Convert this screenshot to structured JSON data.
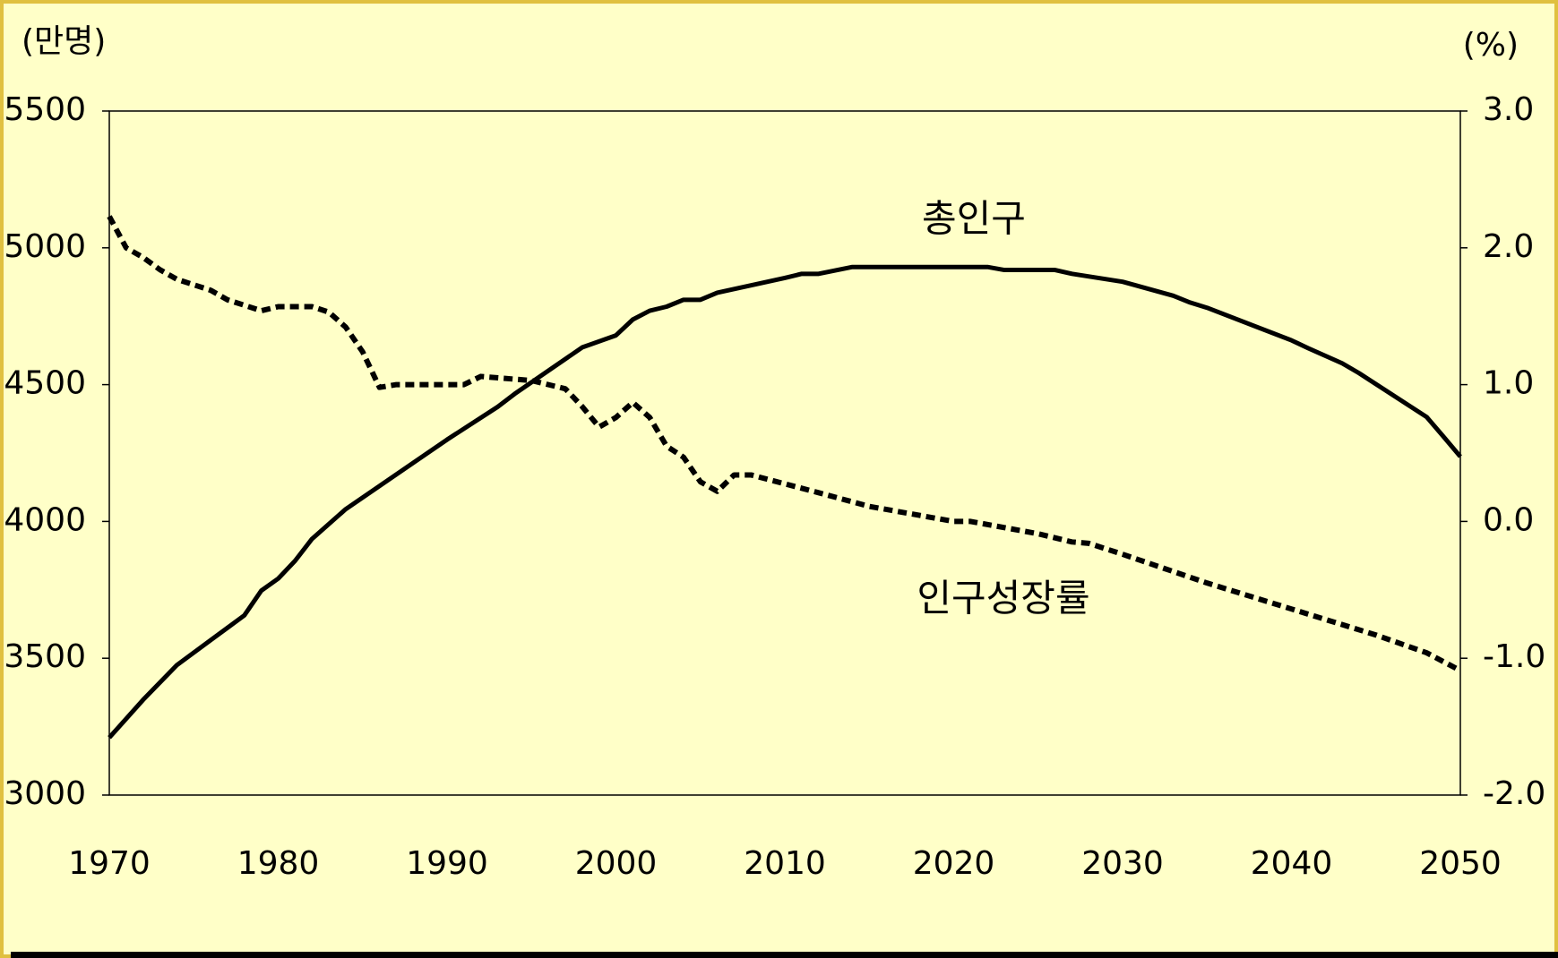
{
  "chart_data": {
    "type": "line",
    "y_unit": "(만명)",
    "y2_unit": "(%)",
    "xlim": [
      1970,
      2050
    ],
    "xticks": [
      1970,
      1980,
      1990,
      2000,
      2010,
      2020,
      2030,
      2040,
      2050
    ],
    "ylim": [
      3000,
      5500
    ],
    "yticks": [
      3000,
      3500,
      4000,
      4500,
      5000,
      5500
    ],
    "y2lim": [
      -2,
      3
    ],
    "y2ticks": [
      {
        "value": -2,
        "label": "-2.0"
      },
      {
        "value": -1,
        "label": "-1.0"
      },
      {
        "value": 0,
        "label": "0.0"
      },
      {
        "value": 1,
        "label": "1.0"
      },
      {
        "value": 2,
        "label": "2.0"
      },
      {
        "value": 3,
        "label": "3.0"
      }
    ],
    "series": [
      {
        "name": "총인구",
        "color": "#000000",
        "dash": false,
        "x": [
          1970,
          1972,
          1974,
          1976,
          1978,
          1979,
          1980,
          1981,
          1982,
          1984,
          1990,
          1993,
          1994,
          1998,
          2000,
          2001,
          2002,
          2003,
          2004,
          2005,
          2006,
          2010,
          2011,
          2012,
          2014,
          2022,
          2023,
          2026,
          2027,
          2030,
          2033,
          2034,
          2035,
          2040,
          2041,
          2043,
          2044,
          2048,
          2049,
          2050
        ],
        "values": [
          3210,
          3348,
          3475,
          3566,
          3657,
          3747,
          3791,
          3856,
          3936,
          4045,
          4299,
          4419,
          4466,
          4636,
          4680,
          4738,
          4770,
          4785,
          4810,
          4810,
          4836,
          4890,
          4905,
          4905,
          4930,
          4930,
          4919,
          4919,
          4905,
          4876,
          4825,
          4800,
          4781,
          4662,
          4633,
          4578,
          4542,
          4382,
          4310,
          4237
        ]
      },
      {
        "name": "인구성장률",
        "color": "#000000",
        "dash": true,
        "axis": "y2",
        "x": [
          1970,
          1971,
          1972,
          1973,
          1974,
          1975,
          1976,
          1977,
          1979,
          1980,
          1982,
          1983,
          1984,
          1985,
          1986,
          1987,
          1991,
          1992,
          1995,
          1997,
          1998,
          1999,
          2000,
          2001,
          2002,
          2003,
          2004,
          2005,
          2006,
          2007,
          2008,
          2012,
          2015,
          2020,
          2021,
          2025,
          2027,
          2028,
          2030,
          2035,
          2040,
          2045,
          2048,
          2050
        ],
        "values": [
          2.23,
          2.0,
          1.93,
          1.84,
          1.77,
          1.73,
          1.69,
          1.62,
          1.54,
          1.57,
          1.57,
          1.53,
          1.42,
          1.24,
          0.98,
          1.0,
          1.0,
          1.06,
          1.03,
          0.97,
          0.84,
          0.69,
          0.76,
          0.87,
          0.76,
          0.55,
          0.47,
          0.29,
          0.22,
          0.34,
          0.34,
          0.21,
          0.11,
          0.0,
          0.0,
          -0.09,
          -0.15,
          -0.16,
          -0.24,
          -0.45,
          -0.64,
          -0.83,
          -0.96,
          -1.09
        ]
      }
    ]
  }
}
